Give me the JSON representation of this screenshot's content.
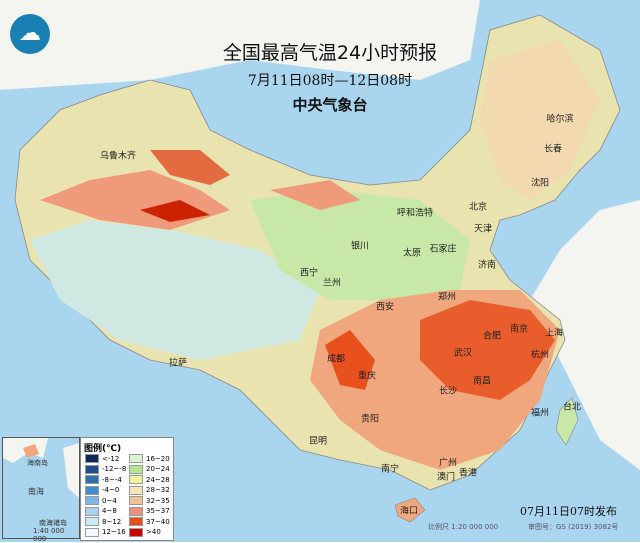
{
  "title": "全国最高气温24小时预报",
  "period": "7月11日08时—12日08时",
  "issuer": "中央气象台",
  "logo_icon": "cma-logo-icon",
  "issued_time": "07月11日07时发布",
  "scale": "比例尺 1:20 000 000",
  "review_number": "审图号：GS (2019) 3082号",
  "inset": {
    "scale": "1:40 000 000",
    "label": "南海诸岛",
    "sea": "南海",
    "island": "海南岛"
  },
  "legend": {
    "title": "图例(℃)",
    "items": [
      {
        "label": "<-12",
        "color": "#0a2a5e"
      },
      {
        "label": "-12~-8",
        "color": "#1f4f8a"
      },
      {
        "label": "-8~-4",
        "color": "#2f6fa6"
      },
      {
        "label": "-4~0",
        "color": "#3f8fd0"
      },
      {
        "label": "0~4",
        "color": "#7ab8e6"
      },
      {
        "label": "4~8",
        "color": "#a9d3f0"
      },
      {
        "label": "8~12",
        "color": "#cfe8f7"
      },
      {
        "label": "12~16",
        "color": "#f2f9fc"
      },
      {
        "label": "16~20",
        "color": "#d6f2d2"
      },
      {
        "label": "20~24",
        "color": "#b6e68e"
      },
      {
        "label": "24~28",
        "color": "#f3f3a0"
      },
      {
        "label": "28~32",
        "color": "#f6e4b5"
      },
      {
        "label": "32~35",
        "color": "#f3c49a"
      },
      {
        "label": "35~37",
        "color": "#ee8f7a"
      },
      {
        "label": "37~40",
        "color": "#e8501e"
      },
      {
        "label": ">40",
        "color": "#cc0000"
      }
    ]
  },
  "cities": [
    "乌鲁木齐",
    "哈尔滨",
    "长春",
    "沈阳",
    "呼和浩特",
    "北京",
    "天津",
    "银川",
    "石家庄",
    "太原",
    "济南",
    "西宁",
    "兰州",
    "郑州",
    "西安",
    "合肥",
    "南京",
    "上海",
    "武汉",
    "杭州",
    "拉萨",
    "成都",
    "重庆",
    "长沙",
    "南昌",
    "福州",
    "台北",
    "贵阳",
    "昆明",
    "南宁",
    "广州",
    "香港",
    "澳门",
    "海口"
  ]
}
